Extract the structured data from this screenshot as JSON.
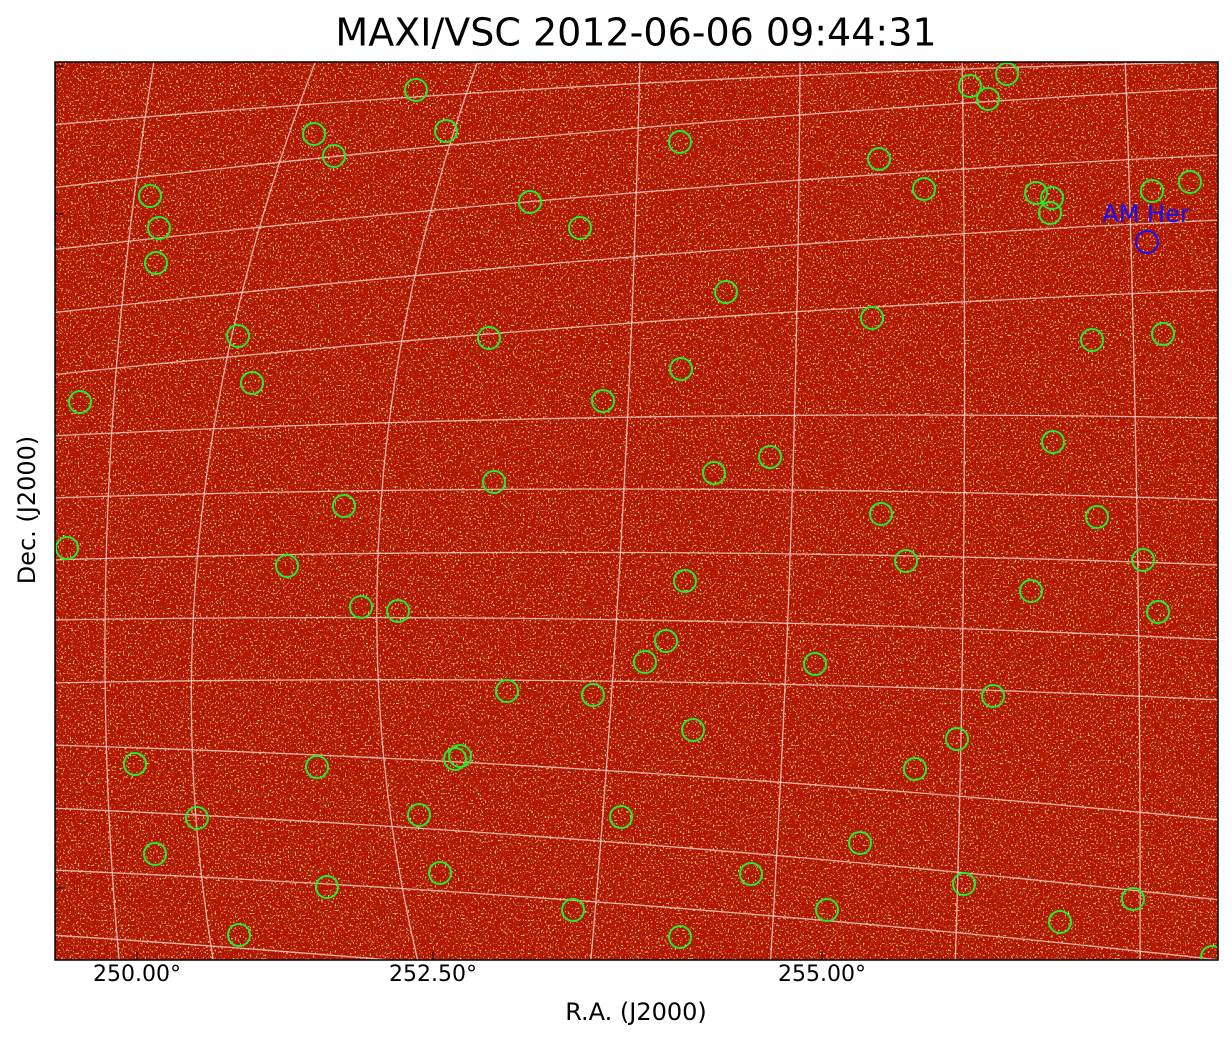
{
  "chart_data": {
    "type": "image",
    "title": "MAXI/VSC 2012-06-06 09:44:31",
    "x_label": "R.A. (J2000)",
    "y_label": "Dec. (J2000)",
    "xticks": [
      {
        "value": 250,
        "label": "250.00°"
      },
      {
        "value": 252.5,
        "label": "252.50°"
      },
      {
        "value": 255,
        "label": "255.00°"
      }
    ],
    "annotations": [
      "AM Her"
    ]
  }
}
